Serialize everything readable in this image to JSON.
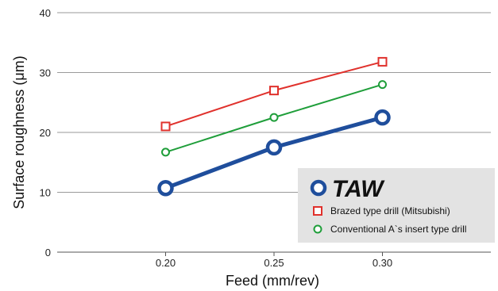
{
  "chart_data": {
    "type": "line",
    "xlabel": "Feed (mm/rev)",
    "ylabel": "Surface roughness (μm)",
    "x": [
      0.2,
      0.25,
      0.3
    ],
    "x_tick_labels": [
      "0.20",
      "0.25",
      "0.30"
    ],
    "xlim": [
      0.15,
      0.35
    ],
    "ylim": [
      0,
      40
    ],
    "y_ticks": [
      0,
      10,
      20,
      30,
      40
    ],
    "y_tick_labels": [
      "0",
      "10",
      "20",
      "30",
      "40"
    ],
    "grid": "horizontal",
    "legend_position": "bottom-right",
    "series": [
      {
        "name": "TAW",
        "values": [
          10.7,
          17.5,
          22.5
        ],
        "color": "#1f4e9c",
        "marker": "circle"
      },
      {
        "name": "Brazed type drill (Mitsubishi)",
        "values": [
          21.0,
          27.0,
          31.8
        ],
        "color": "#e0312c",
        "marker": "square"
      },
      {
        "name": "Conventional A`s insert type drill",
        "values": [
          16.7,
          22.5,
          28.0
        ],
        "color": "#1f9e3a",
        "marker": "circle"
      }
    ]
  }
}
